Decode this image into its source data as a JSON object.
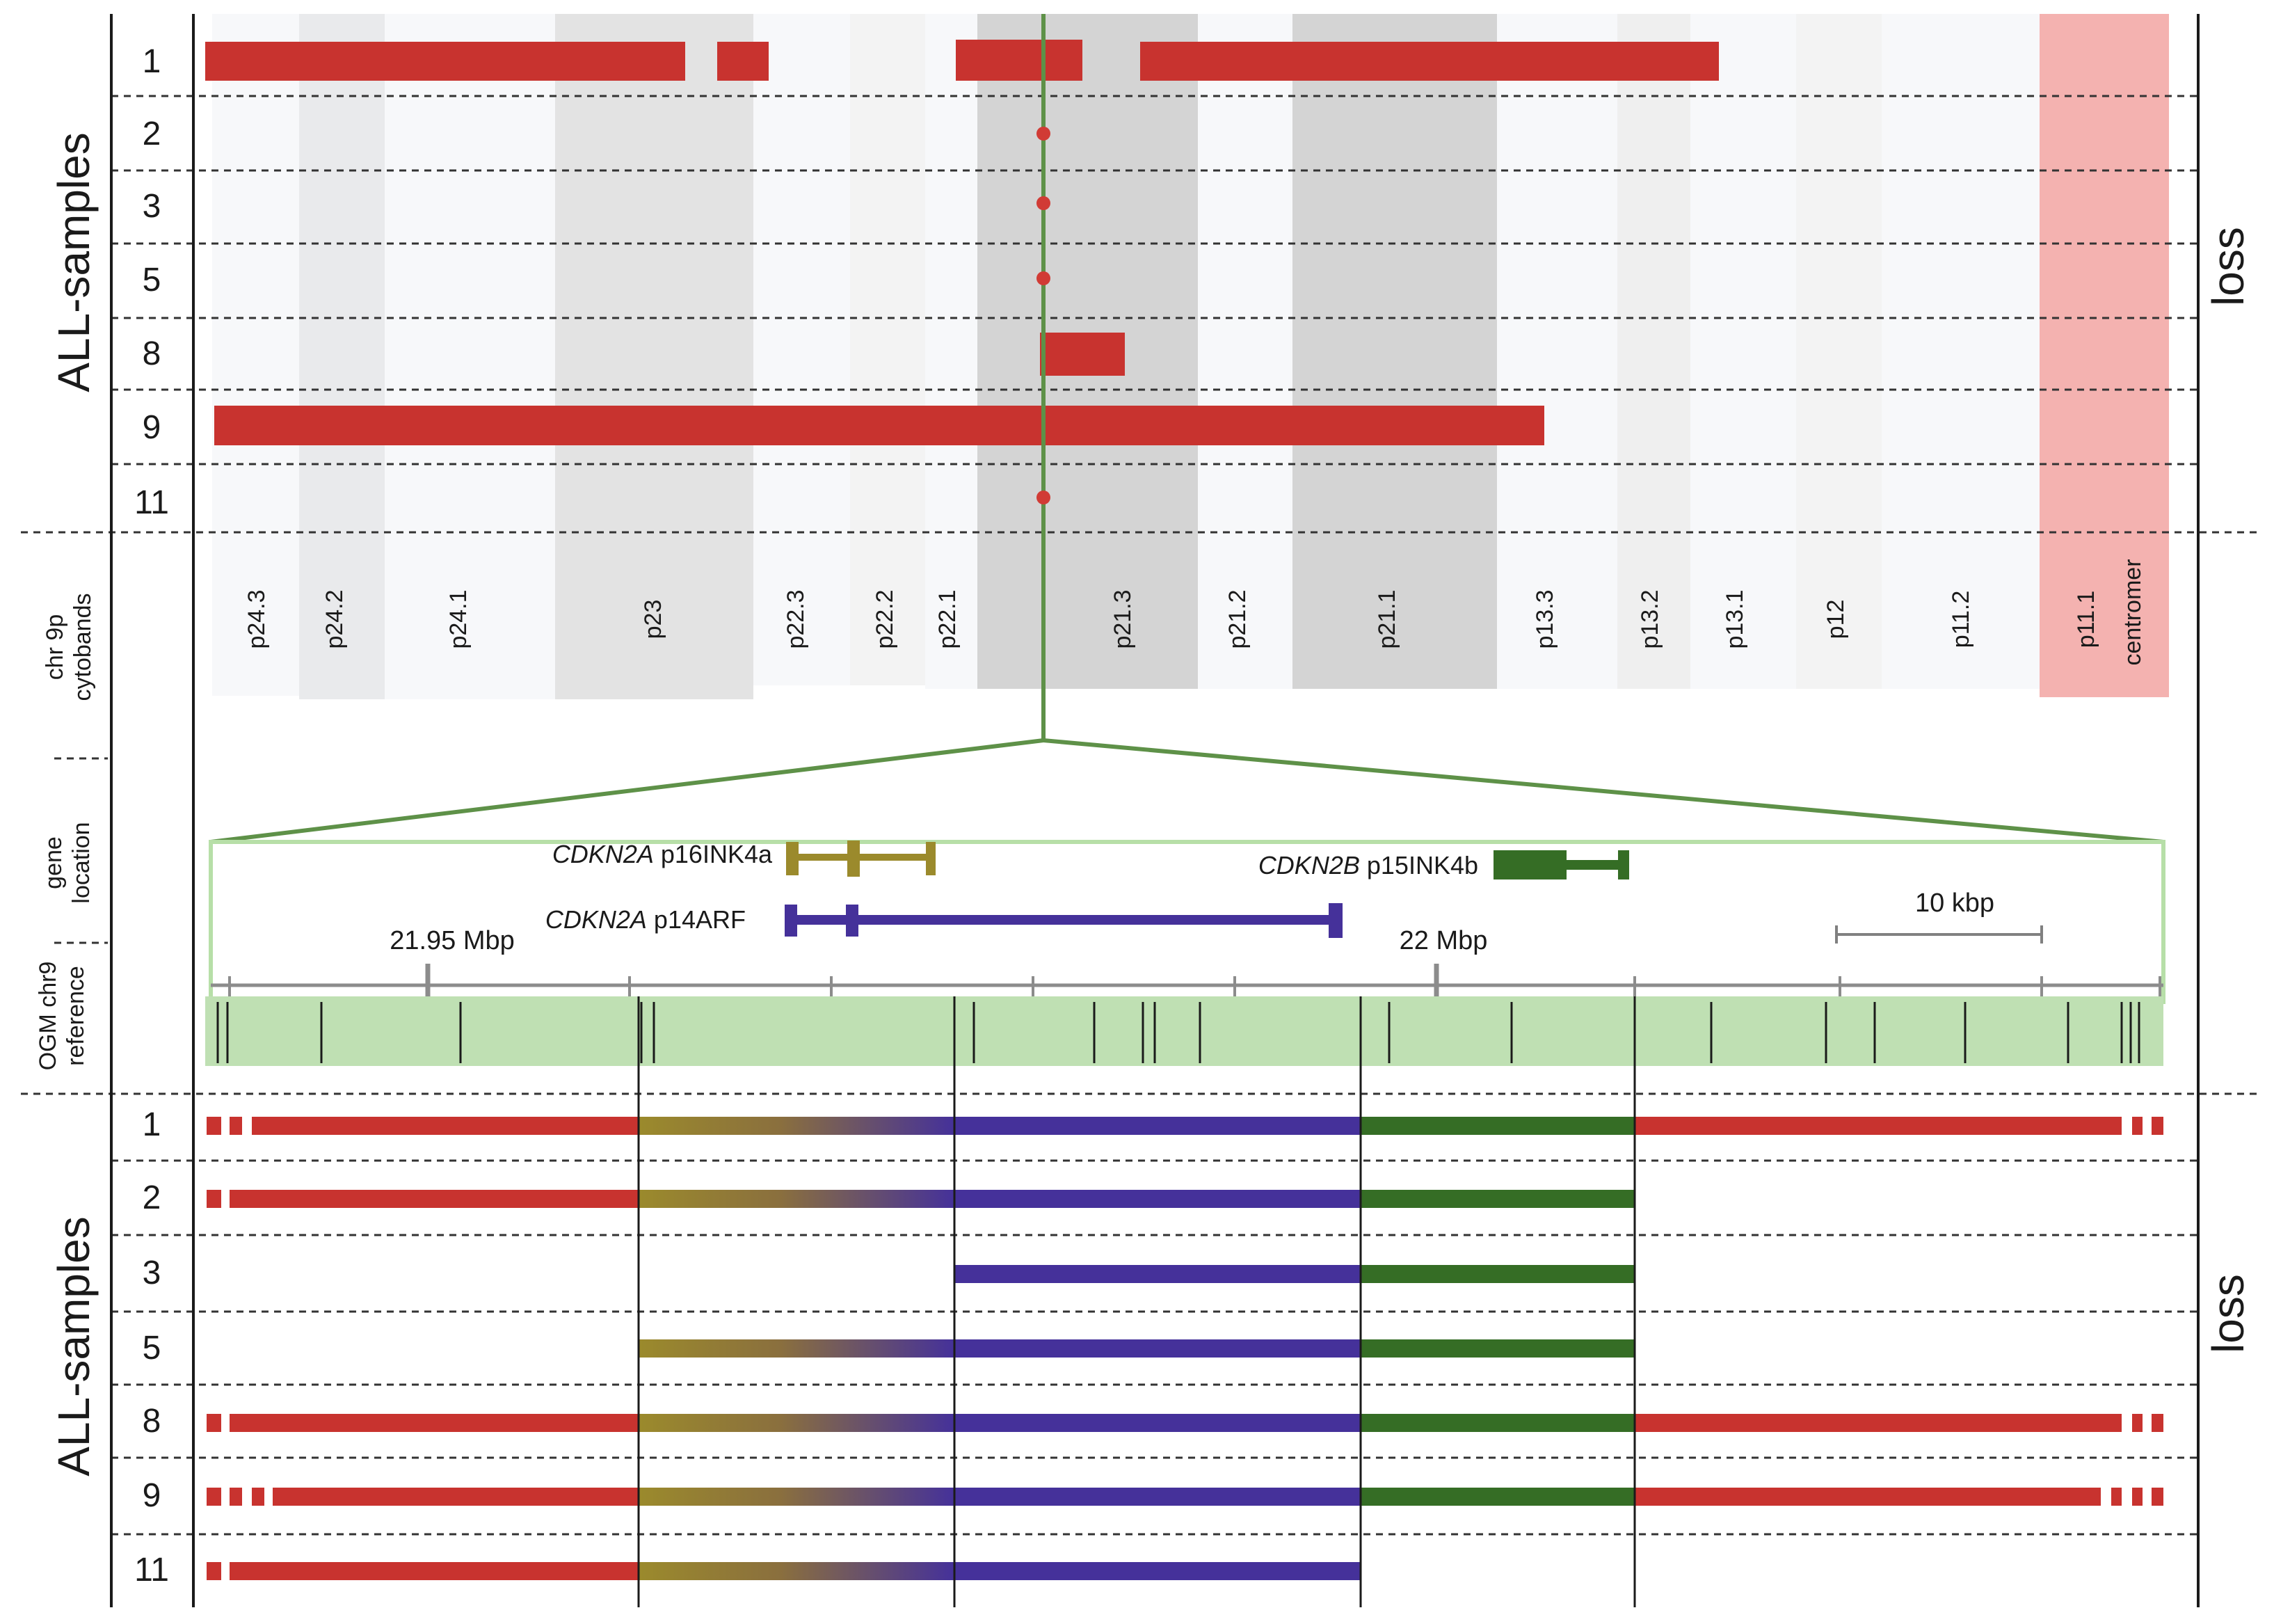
{
  "figure": {
    "top_panel_label": "ALL-samples",
    "bottom_panel_label": "ALL-samples",
    "top_right_label": "loss",
    "bottom_right_label": "loss",
    "cytoband_section_label": [
      "chr 9p",
      "cytobands"
    ],
    "gene_section_label": [
      "gene",
      "location"
    ],
    "reference_section_label": [
      "OGM chr9",
      "reference"
    ]
  },
  "colors": {
    "loss": "#c8332f",
    "cdkn2a_p16": "#9b8a2c",
    "cdkn2a_p14": "#45319a",
    "cdkn2b": "#356d25",
    "reference_map": "#bfe0b3",
    "marker_line": "#5e9148",
    "centromere": "#f4b2b0"
  },
  "top_samples": [
    {
      "label": "1"
    },
    {
      "label": "2"
    },
    {
      "label": "3"
    },
    {
      "label": "5"
    },
    {
      "label": "8"
    },
    {
      "label": "9"
    },
    {
      "label": "11"
    }
  ],
  "cytobands": [
    {
      "name": "p24.3",
      "stain": "#f7f8fa"
    },
    {
      "name": "p24.2",
      "stain": "#e9eaec"
    },
    {
      "name": "p24.1",
      "stain": "#f7f8fa"
    },
    {
      "name": "p23",
      "stain": "#e3e3e3"
    },
    {
      "name": "p22.3",
      "stain": "#f7f8fa"
    },
    {
      "name": "p22.2",
      "stain": "#f3f3f3"
    },
    {
      "name": "p22.1",
      "stain": "#f7f8fa"
    },
    {
      "name": "p21.3",
      "stain": "#d4d4d4"
    },
    {
      "name": "p21.2",
      "stain": "#f7f8fa"
    },
    {
      "name": "p21.1",
      "stain": "#d4d4d4"
    },
    {
      "name": "p13.3",
      "stain": "#f7f8fa"
    },
    {
      "name": "p13.2",
      "stain": "#efefef"
    },
    {
      "name": "p13.1",
      "stain": "#f7f8fa"
    },
    {
      "name": "p12",
      "stain": "#f3f3f3"
    },
    {
      "name": "p11.2",
      "stain": "#f7f8fa"
    },
    {
      "name": "p11.1",
      "stain": "#f4b2b0"
    },
    {
      "name": "centromer",
      "stain": "#f4b2b0"
    }
  ],
  "genes": {
    "cdkn2a_p16": {
      "gene": "CDKN2A",
      "isoform": "p16INK4a"
    },
    "cdkn2a_p14": {
      "gene": "CDKN2A",
      "isoform": "p14ARF"
    },
    "cdkn2b": {
      "gene": "CDKN2B",
      "isoform": "p15INK4b"
    }
  },
  "scale": {
    "left_tick_label": "21.95 Mbp",
    "right_tick_label": "22 Mbp",
    "scale_bar_label": "10 kbp"
  },
  "bottom_samples": [
    {
      "label": "1"
    },
    {
      "label": "2"
    },
    {
      "label": "3"
    },
    {
      "label": "5"
    },
    {
      "label": "8"
    },
    {
      "label": "9"
    },
    {
      "label": "11"
    }
  ]
}
